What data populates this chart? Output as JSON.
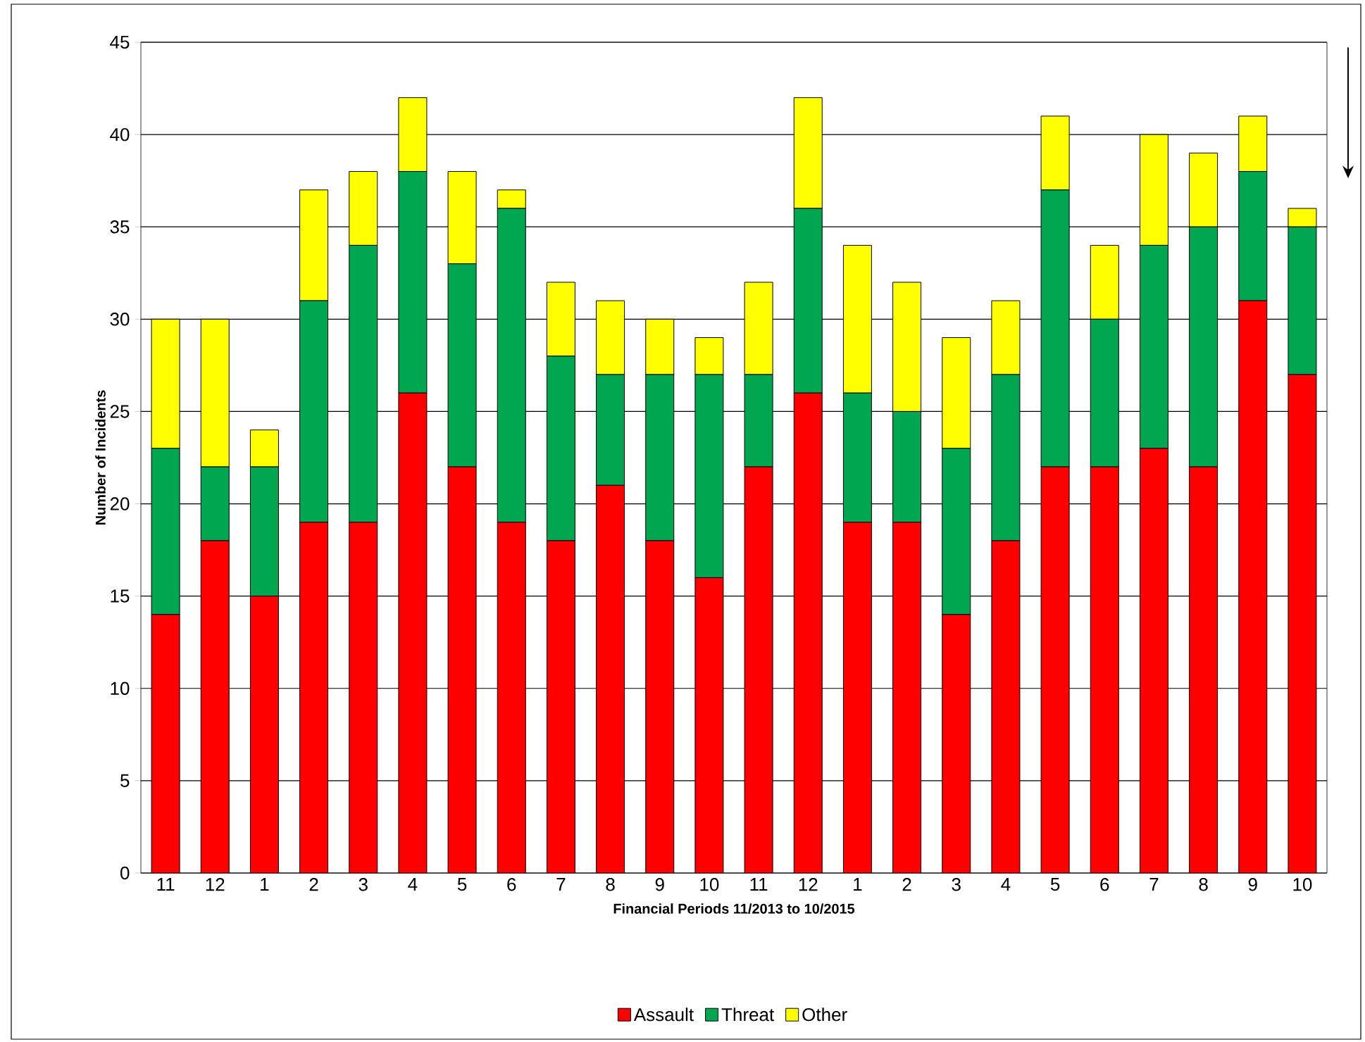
{
  "chart_data": {
    "type": "bar",
    "stacked": true,
    "xlabel": "Financial Periods 11/2013 to 10/2015",
    "ylabel": "Number of Incidents",
    "categories": [
      "11",
      "12",
      "1",
      "2",
      "3",
      "4",
      "5",
      "6",
      "7",
      "8",
      "9",
      "10",
      "11",
      "12",
      "1",
      "2",
      "3",
      "4",
      "5",
      "6",
      "7",
      "8",
      "9",
      "10"
    ],
    "series": [
      {
        "name": "Assault",
        "color": "#ff0000",
        "values": [
          14,
          18,
          15,
          19,
          19,
          26,
          22,
          19,
          18,
          21,
          18,
          16,
          22,
          26,
          19,
          19,
          14,
          18,
          22,
          22,
          23,
          22,
          31,
          27
        ]
      },
      {
        "name": "Threat",
        "color": "#00a650",
        "values": [
          9,
          4,
          7,
          12,
          15,
          12,
          11,
          17,
          10,
          6,
          9,
          11,
          5,
          10,
          7,
          6,
          9,
          9,
          15,
          8,
          11,
          13,
          7,
          8
        ]
      },
      {
        "name": "Other",
        "color": "#ffff00",
        "values": [
          7,
          8,
          2,
          6,
          4,
          4,
          5,
          1,
          4,
          4,
          3,
          2,
          5,
          6,
          8,
          7,
          6,
          4,
          4,
          4,
          6,
          4,
          3,
          1
        ]
      }
    ],
    "ylim": [
      0,
      45
    ],
    "yticks": [
      0,
      5,
      10,
      15,
      20,
      25,
      30,
      35,
      40,
      45
    ],
    "grid": "y",
    "legend": "bottom"
  }
}
